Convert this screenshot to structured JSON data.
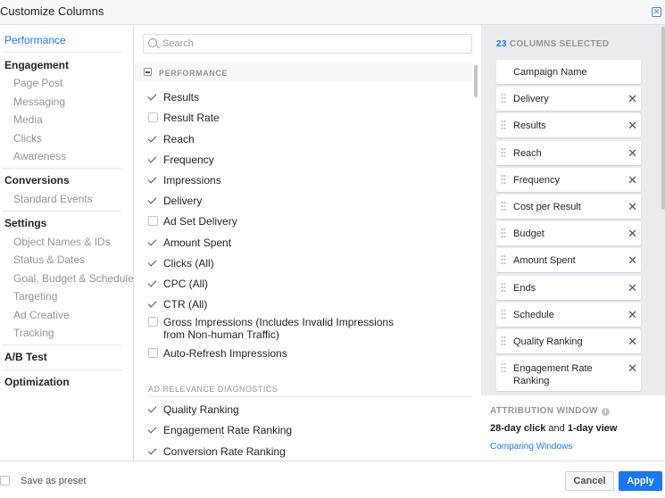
{
  "title": "Customize Columns",
  "sidebar": {
    "performance": "Performance",
    "engagement": "Engagement",
    "engagement_items": [
      "Page Post",
      "Messaging",
      "Media",
      "Clicks",
      "Awareness"
    ],
    "conversions": "Conversions",
    "conversions_items": [
      "Standard Events"
    ],
    "settings": "Settings",
    "settings_items": [
      "Object Names & IDs",
      "Status & Dates",
      "Goal, Budget & Schedule",
      "Targeting",
      "Ad Creative",
      "Tracking"
    ],
    "ab_test": "A/B Test",
    "optimization": "Optimization"
  },
  "search": {
    "placeholder": "Search"
  },
  "section": {
    "title": "PERFORMANCE",
    "subsection": "AD RELEVANCE DIAGNOSTICS"
  },
  "items": [
    {
      "label": "Results",
      "checked": true
    },
    {
      "label": "Result Rate",
      "checked": false
    },
    {
      "label": "Reach",
      "checked": true
    },
    {
      "label": "Frequency",
      "checked": true
    },
    {
      "label": "Impressions",
      "checked": true
    },
    {
      "label": "Delivery",
      "checked": true
    },
    {
      "label": "Ad Set Delivery",
      "checked": false
    },
    {
      "label": "Amount Spent",
      "checked": true
    },
    {
      "label": "Clicks (All)",
      "checked": true
    },
    {
      "label": "CPC (All)",
      "checked": true
    },
    {
      "label": "CTR (All)",
      "checked": true
    },
    {
      "label": "Gross Impressions (Includes Invalid Impressions from Non-human Traffic)",
      "checked": false
    },
    {
      "label": "Auto-Refresh Impressions",
      "checked": false
    }
  ],
  "diag_items": [
    {
      "label": "Quality Ranking",
      "checked": true
    },
    {
      "label": "Engagement Rate Ranking",
      "checked": true
    },
    {
      "label": "Conversion Rate Ranking",
      "checked": true
    }
  ],
  "selected": {
    "count": "23",
    "count_label": "COLUMNS SELECTED",
    "columns": [
      "Campaign Name",
      "Delivery",
      "Results",
      "Reach",
      "Frequency",
      "Cost per Result",
      "Budget",
      "Amount Spent",
      "Ends",
      "Schedule",
      "Quality Ranking",
      "Engagement Rate Ranking"
    ]
  },
  "attribution": {
    "title": "ATTRIBUTION WINDOW",
    "click": "28-day click",
    "and": " and ",
    "view": "1-day view",
    "link": "Comparing Windows"
  },
  "footer": {
    "save_preset": "Save as preset",
    "cancel": "Cancel",
    "apply": "Apply"
  },
  "colors": {
    "accent": "#1877f2"
  }
}
